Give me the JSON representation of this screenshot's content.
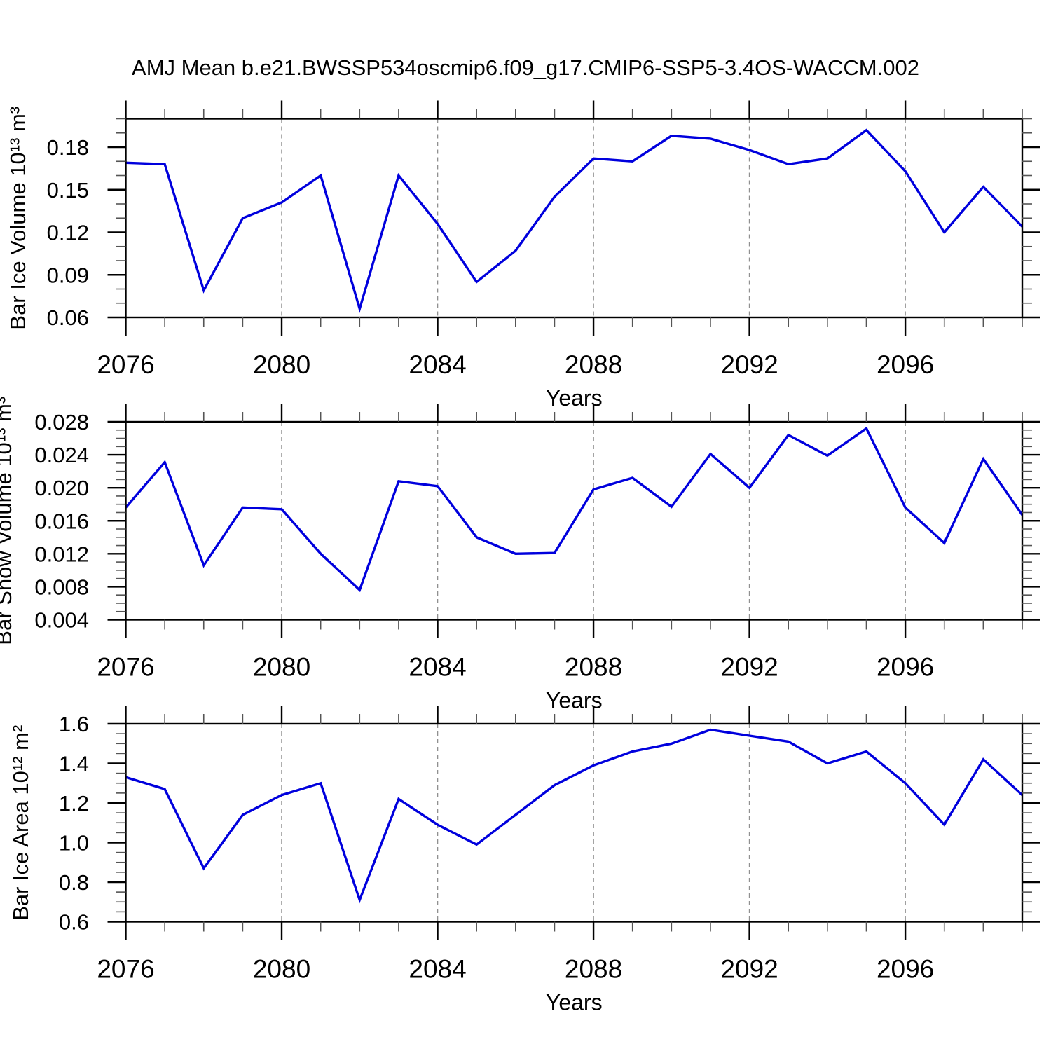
{
  "figure_title": "AMJ Mean b.e21.BWSSP534oscmip6.f09_g17.CMIP6-SSP5-3.4OS-WACCM.002",
  "colors": {
    "line": "#0000dd",
    "axis": "#000000",
    "grid": "#909090",
    "minor_tick": "#555555"
  },
  "chart_data": [
    {
      "type": "line",
      "ylabel": "Bar Ice Volume 10¹³ m³",
      "xlabel": "Years",
      "x": [
        2076,
        2077,
        2078,
        2079,
        2080,
        2081,
        2082,
        2083,
        2084,
        2085,
        2086,
        2087,
        2088,
        2089,
        2090,
        2091,
        2092,
        2093,
        2094,
        2095,
        2096,
        2097,
        2098,
        2099
      ],
      "values": [
        0.169,
        0.168,
        0.079,
        0.13,
        0.141,
        0.16,
        0.066,
        0.16,
        0.126,
        0.085,
        0.107,
        0.145,
        0.172,
        0.17,
        0.188,
        0.186,
        0.178,
        0.168,
        0.172,
        0.192,
        0.163,
        0.12,
        0.152,
        0.124
      ],
      "xlim": [
        2076,
        2099
      ],
      "ylim": [
        0.06,
        0.2
      ],
      "yticks_major": {
        "values": [
          0.06,
          0.09,
          0.12,
          0.15,
          0.18
        ],
        "labels": [
          "0.06",
          "0.09",
          "0.12",
          "0.15",
          "0.18"
        ]
      },
      "y_minor_step": 0.01,
      "xticks_labeled": {
        "values": [
          2076,
          2080,
          2084,
          2088,
          2092,
          2096
        ],
        "labels": [
          "2076",
          "2080",
          "2084",
          "2088",
          "2092",
          "2096"
        ]
      },
      "x_minor_step": 1,
      "grid_x": [
        2080,
        2084,
        2088,
        2092,
        2096
      ],
      "grid": true,
      "legend": "none"
    },
    {
      "type": "line",
      "ylabel": "Bar Snow Volume 10¹³ m³",
      "xlabel": "Years",
      "x": [
        2076,
        2077,
        2078,
        2079,
        2080,
        2081,
        2082,
        2083,
        2084,
        2085,
        2086,
        2087,
        2088,
        2089,
        2090,
        2091,
        2092,
        2093,
        2094,
        2095,
        2096,
        2097,
        2098,
        2099
      ],
      "values": [
        0.0176,
        0.0231,
        0.0106,
        0.0176,
        0.0174,
        0.012,
        0.0076,
        0.0208,
        0.0202,
        0.014,
        0.012,
        0.0121,
        0.0198,
        0.0212,
        0.0177,
        0.0241,
        0.02,
        0.0264,
        0.0239,
        0.0272,
        0.0176,
        0.0133,
        0.0235,
        0.0167
      ],
      "xlim": [
        2076,
        2099
      ],
      "ylim": [
        0.004,
        0.028
      ],
      "yticks_major": {
        "values": [
          0.004,
          0.008,
          0.012,
          0.016,
          0.02,
          0.024,
          0.028
        ],
        "labels": [
          "0.004",
          "0.008",
          "0.012",
          "0.016",
          "0.020",
          "0.024",
          "0.028"
        ]
      },
      "y_minor_step": 0.001,
      "xticks_labeled": {
        "values": [
          2076,
          2080,
          2084,
          2088,
          2092,
          2096
        ],
        "labels": [
          "2076",
          "2080",
          "2084",
          "2088",
          "2092",
          "2096"
        ]
      },
      "x_minor_step": 1,
      "grid_x": [
        2080,
        2084,
        2088,
        2092,
        2096
      ],
      "grid": true,
      "legend": "none"
    },
    {
      "type": "line",
      "ylabel": "Bar Ice Area 10¹² m²",
      "xlabel": "Years",
      "x": [
        2076,
        2077,
        2078,
        2079,
        2080,
        2081,
        2082,
        2083,
        2084,
        2085,
        2086,
        2087,
        2088,
        2089,
        2090,
        2091,
        2092,
        2093,
        2094,
        2095,
        2096,
        2097,
        2098,
        2099
      ],
      "values": [
        1.33,
        1.27,
        0.87,
        1.14,
        1.24,
        1.3,
        0.71,
        1.22,
        1.09,
        0.99,
        1.14,
        1.29,
        1.39,
        1.46,
        1.5,
        1.57,
        1.54,
        1.51,
        1.4,
        1.46,
        1.3,
        1.09,
        1.42,
        1.24
      ],
      "xlim": [
        2076,
        2099
      ],
      "ylim": [
        0.6,
        1.6
      ],
      "yticks_major": {
        "values": [
          0.6,
          0.8,
          1.0,
          1.2,
          1.4,
          1.6
        ],
        "labels": [
          "0.6",
          "0.8",
          "1.0",
          "1.2",
          "1.4",
          "1.6"
        ]
      },
      "y_minor_step": 0.05,
      "xticks_labeled": {
        "values": [
          2076,
          2080,
          2084,
          2088,
          2092,
          2096
        ],
        "labels": [
          "2076",
          "2080",
          "2084",
          "2088",
          "2092",
          "2096"
        ]
      },
      "x_minor_step": 1,
      "grid_x": [
        2080,
        2084,
        2088,
        2092,
        2096
      ],
      "grid": true,
      "legend": "none"
    }
  ]
}
